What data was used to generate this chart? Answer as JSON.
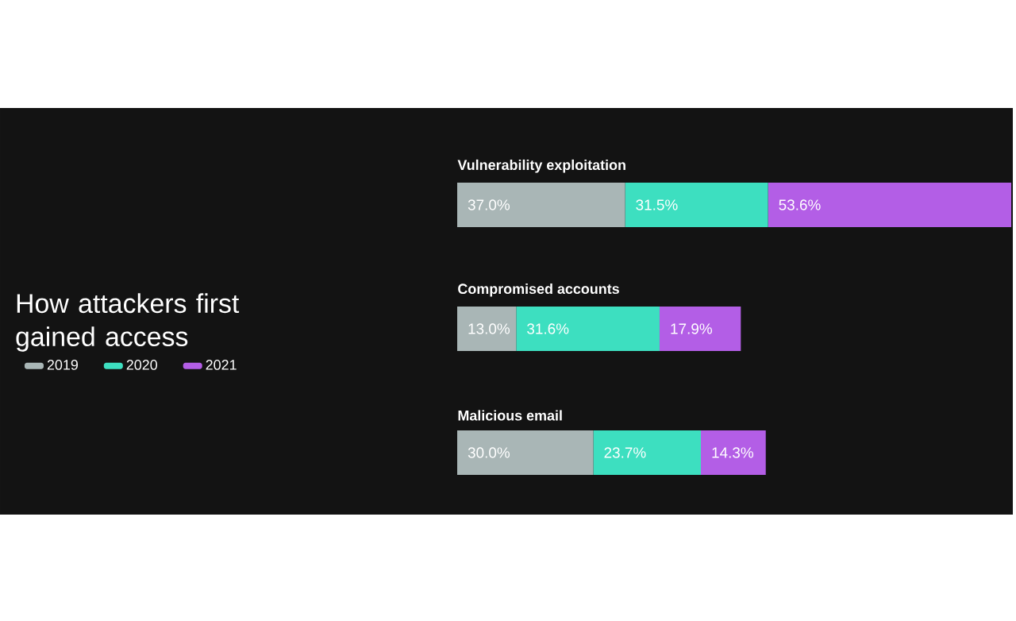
{
  "chart_data": {
    "type": "bar",
    "orientation": "horizontal",
    "stacked": true,
    "title": "How attackers first gained access",
    "legend": "left",
    "categories": [
      "Vulnerability exploitation",
      "Compromised accounts",
      "Malicious email"
    ],
    "series": [
      {
        "name": "2019",
        "color": "#a9b6b6",
        "values": [
          37.0,
          13.0,
          30.0
        ],
        "value_labels": [
          "37.0%",
          "13.0%",
          "30.0%"
        ]
      },
      {
        "name": "2020",
        "color": "#3ddfc0",
        "values": [
          31.5,
          31.6,
          23.7
        ],
        "value_labels": [
          "31.5%",
          "31.6%",
          "23.7%"
        ]
      },
      {
        "name": "2021",
        "color": "#b35ee6",
        "values": [
          53.6,
          17.9,
          14.3
        ],
        "value_labels": [
          "53.6%",
          "17.9%",
          "14.3%"
        ]
      }
    ]
  }
}
